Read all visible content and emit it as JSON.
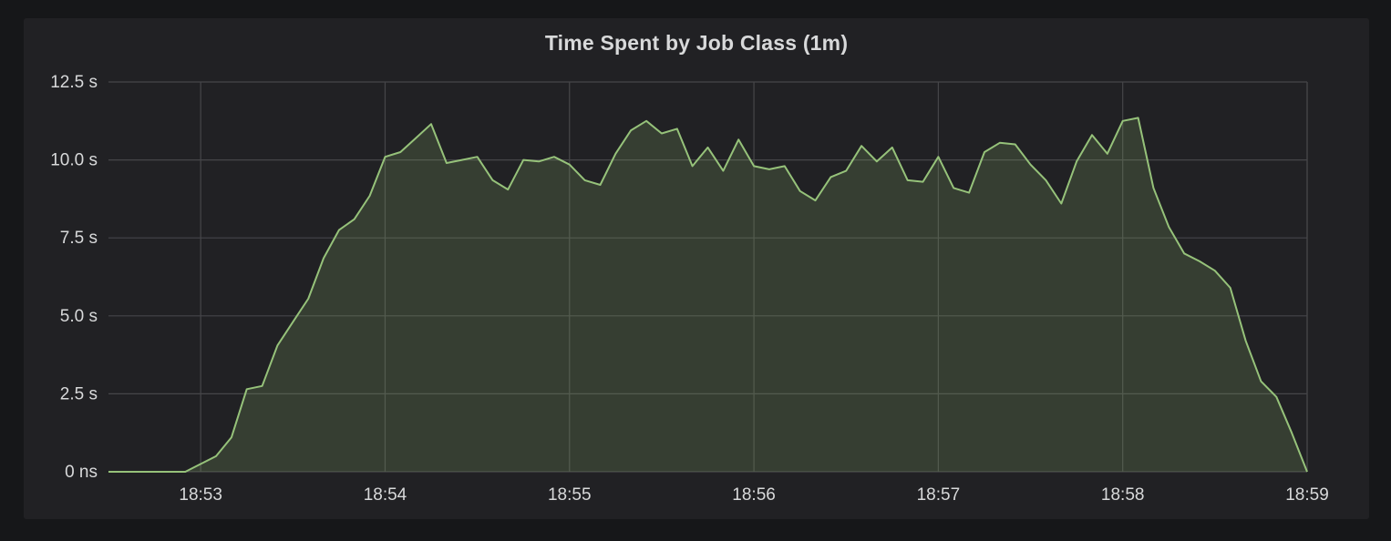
{
  "chart_data": {
    "type": "area",
    "title": "Time Spent by Job Class (1m)",
    "xlabel": "",
    "ylabel": "",
    "x_unit": "minutes (time of day)",
    "x_ticks": [
      "18:53",
      "18:54",
      "18:55",
      "18:56",
      "18:57",
      "18:58",
      "18:59"
    ],
    "y_ticks": [
      "0 ns",
      "2.5 s",
      "5.0 s",
      "7.5 s",
      "10.0 s",
      "12.5 s"
    ],
    "xlim": [
      "18:52:30",
      "18:59:00"
    ],
    "ylim": [
      0,
      12.5
    ],
    "grid": true,
    "legend": "none",
    "series_color": "#96c27a",
    "fill_color": "rgba(130,170,100,0.22)",
    "series": [
      {
        "x": [
          "18:52:30",
          "18:52:35",
          "18:52:40",
          "18:52:45",
          "18:52:50",
          "18:52:55",
          "18:53:00",
          "18:53:05",
          "18:53:10",
          "18:53:15",
          "18:53:20",
          "18:53:25",
          "18:53:30",
          "18:53:35",
          "18:53:40",
          "18:53:45",
          "18:53:50",
          "18:53:55",
          "18:54:00",
          "18:54:05",
          "18:54:10",
          "18:54:15",
          "18:54:20",
          "18:54:25",
          "18:54:30",
          "18:54:35",
          "18:54:40",
          "18:54:45",
          "18:54:50",
          "18:54:55",
          "18:55:00",
          "18:55:05",
          "18:55:10",
          "18:55:15",
          "18:55:20",
          "18:55:25",
          "18:55:30",
          "18:55:35",
          "18:55:40",
          "18:55:45",
          "18:55:50",
          "18:55:55",
          "18:56:00",
          "18:56:05",
          "18:56:10",
          "18:56:15",
          "18:56:20",
          "18:56:25",
          "18:56:30",
          "18:56:35",
          "18:56:40",
          "18:56:45",
          "18:56:50",
          "18:56:55",
          "18:57:00",
          "18:57:05",
          "18:57:10",
          "18:57:15",
          "18:57:20",
          "18:57:25",
          "18:57:30",
          "18:57:35",
          "18:57:40",
          "18:57:45",
          "18:57:50",
          "18:57:55",
          "18:58:00",
          "18:58:05",
          "18:58:10",
          "18:58:15",
          "18:58:20",
          "18:58:25",
          "18:58:30",
          "18:58:35",
          "18:58:40",
          "18:58:45",
          "18:58:50",
          "18:58:55",
          "18:59:00"
        ],
        "values": [
          0,
          0,
          0,
          0,
          0,
          0,
          0.25,
          0.5,
          1.1,
          2.65,
          2.75,
          4.05,
          4.8,
          5.55,
          6.85,
          7.75,
          8.1,
          8.85,
          10.1,
          10.25,
          10.7,
          11.15,
          9.9,
          10.0,
          10.1,
          9.35,
          9.05,
          10.0,
          9.95,
          10.1,
          9.85,
          9.35,
          9.2,
          10.2,
          10.95,
          11.25,
          10.85,
          11.0,
          9.8,
          10.4,
          9.65,
          10.65,
          9.8,
          9.7,
          9.8,
          9.0,
          8.7,
          9.45,
          9.65,
          10.45,
          9.95,
          10.4,
          9.35,
          9.3,
          10.1,
          9.1,
          8.95,
          10.25,
          10.55,
          10.5,
          9.85,
          9.35,
          8.6,
          9.95,
          10.8,
          10.2,
          11.25,
          11.35,
          9.1,
          7.85,
          7.0,
          6.75,
          6.45,
          5.9,
          4.2,
          2.9,
          2.4,
          1.25,
          0
        ]
      }
    ]
  }
}
